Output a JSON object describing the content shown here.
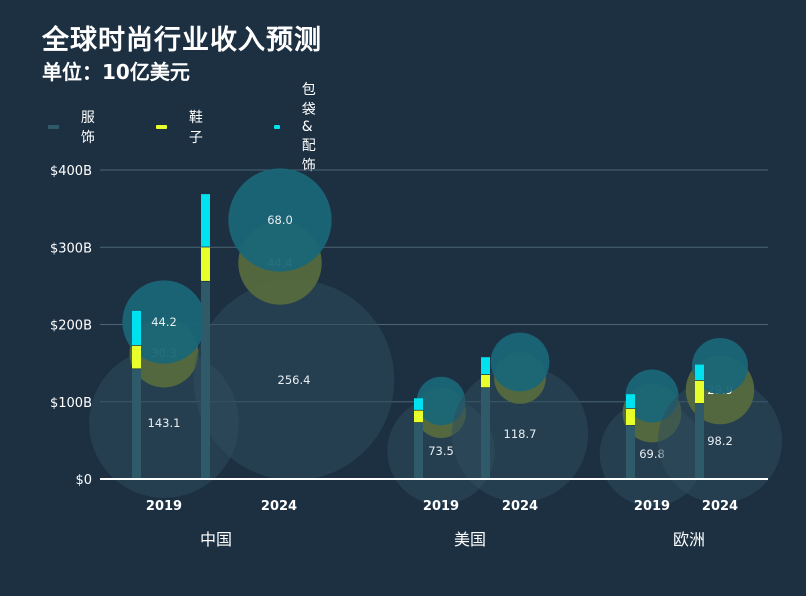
{
  "title": "全球时尚行业收入预测",
  "subtitle": "单位：10亿美元",
  "colors": {
    "background": "#1c3042",
    "apparel": "#2f5a6a",
    "shoes": "#e7ff2a",
    "bags": "#00e2ef",
    "gridline": "#4a6675",
    "bubble_apparel": "#2f4c5c",
    "bubble_shoes": "#566a3e",
    "bubble_bags": "#1a6677"
  },
  "chart_data": {
    "type": "bar",
    "title": "全球时尚行业收入预测",
    "subtitle": "单位：10亿美元",
    "stacked": true,
    "with_bubbles": true,
    "ylim": [
      0,
      400
    ],
    "yticks": [
      0,
      100,
      200,
      300,
      400
    ],
    "ytick_labels": [
      "$0",
      "$100B",
      "$200B",
      "$300B",
      "$400B"
    ],
    "grid": true,
    "legend": "top-left",
    "groups": [
      "中国",
      "美国",
      "欧洲"
    ],
    "years": [
      "2019",
      "2024"
    ],
    "categories": [
      "中国 2019",
      "中国 2024",
      "美国 2019",
      "美国 2024",
      "欧洲 2019",
      "欧洲 2024"
    ],
    "series": [
      {
        "name": "服饰",
        "color": "#2f5a6a",
        "values": [
          143.1,
          256.4,
          73.5,
          118.7,
          69.8,
          98.2
        ]
      },
      {
        "name": "鞋子",
        "color": "#e7ff2a",
        "values": [
          30.3,
          44.4,
          16,
          17,
          22,
          29.9
        ]
      },
      {
        "name": "包袋&配饰",
        "color": "#00e2ef",
        "values": [
          44.2,
          68.0,
          15,
          22,
          18,
          20
        ]
      }
    ],
    "bubble_labels": [
      [
        "143.1",
        "30.3",
        "44.2"
      ],
      [
        "256.4",
        "44.4",
        "68.0"
      ],
      [
        "73.5",
        "",
        ""
      ],
      [
        "118.7",
        "",
        ""
      ],
      [
        "69.8",
        "",
        ""
      ],
      [
        "98.2",
        "29.9",
        ""
      ]
    ]
  }
}
